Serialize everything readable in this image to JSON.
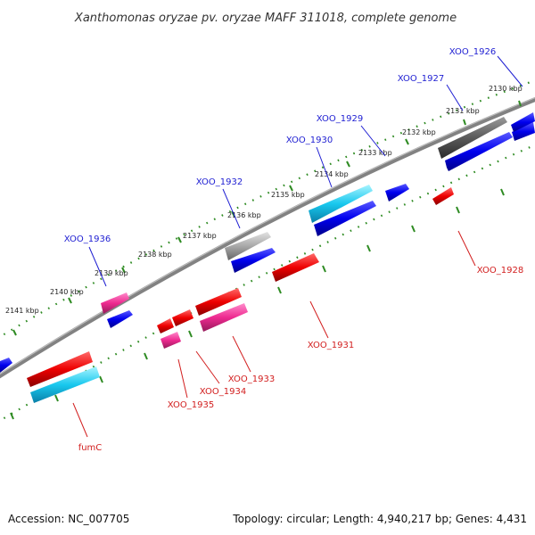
{
  "title": "Xanthomonas oryzae pv. oryzae MAFF 311018, complete genome",
  "footer": {
    "accession": "Accession: NC_007705",
    "topology": "Topology: circular; Length: 4,940,217 bp; Genes: 4,431"
  },
  "colors": {
    "backbone": "#808080",
    "dotted_track": "#2e8b22",
    "label_forward": "#1e1ed2",
    "label_reverse": "#d21e1e",
    "gene_blue": "#0000ee",
    "gene_cyan": "#18c8ee",
    "gene_red": "#ee0000",
    "gene_pink": "#ee2a90",
    "gene_gray": "#909090",
    "gene_dark_gray": "#555555"
  },
  "kbp_ticks": [
    "2130 kbp",
    "2131 kbp",
    "2132 kbp",
    "2133 kbp",
    "2134 kbp",
    "2135 kbp",
    "2136 kbp",
    "2137 kbp",
    "2138 kbp",
    "2139 kbp",
    "2140 kbp",
    "2141 kbp"
  ],
  "gene_labels": {
    "forward": [
      "XOO_1926",
      "XOO_1927",
      "XOO_1929",
      "XOO_1930",
      "XOO_1932",
      "XOO_1936"
    ],
    "reverse": [
      "XOO_1928",
      "XOO_1931",
      "XOO_1933",
      "XOO_1934",
      "XOO_1935",
      "fumC"
    ]
  }
}
